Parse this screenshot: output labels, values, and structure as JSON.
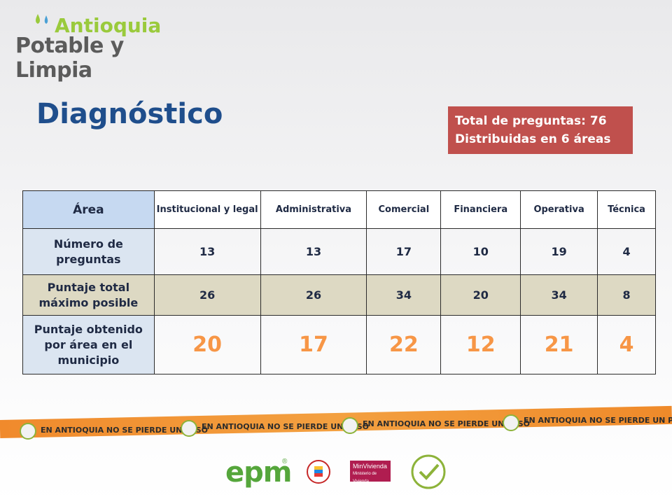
{
  "logo": {
    "line1": "Antioquia",
    "line2": "Potable y Limpia"
  },
  "title": "Diagnóstico",
  "infobox": {
    "line1": "Total de preguntas: 76",
    "line2": "Distribuidas  en 6 áreas"
  },
  "table": {
    "header": [
      "Área",
      "Institucional  y legal",
      "Administrativa",
      "Comercial",
      "Financiera",
      "Operativa",
      "Técnica"
    ],
    "rows": [
      {
        "label": "Número de preguntas",
        "values": [
          "13",
          "13",
          "17",
          "10",
          "19",
          "4"
        ]
      },
      {
        "label": "Puntaje total máximo posible",
        "values": [
          "26",
          "26",
          "34",
          "20",
          "34",
          "8"
        ]
      },
      {
        "label": "Puntaje obtenido por área en el municipio",
        "values": [
          "20",
          "17",
          "22",
          "12",
          "21",
          "4"
        ]
      }
    ]
  },
  "banner": {
    "text": "EN ANTIOQUIA NO SE PIERDE UN PESO"
  },
  "footer": {
    "epm": "epm",
    "epm_reg": "®",
    "minvivienda_line1": "MinVivienda",
    "minvivienda_line2": "Ministerio de Vivienda",
    "educada": "Antioquia la más educada"
  },
  "colors": {
    "title": "#1f4e8c",
    "infobox": "#c0504d",
    "score": "#f79646",
    "header": "#c6d9f1",
    "max_row": "#ddd9c3",
    "banner": "#f08a2c",
    "epm": "#55a63b"
  }
}
